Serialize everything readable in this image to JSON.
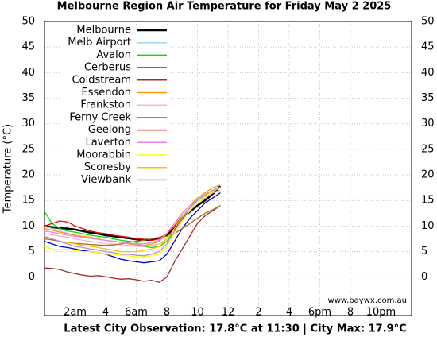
{
  "chart_data": {
    "type": "line",
    "title": "Melbourne Region Air Temperature  for Friday May 2 2025",
    "y_label": "Temperature (°C)",
    "footer": "Latest City Observation: 17.8°C at 11:30 | City Max: 17.9°C",
    "credit": "www.baywx.com.au",
    "x": [
      0,
      0.5,
      1,
      1.5,
      2,
      2.5,
      3,
      3.5,
      4,
      4.5,
      5,
      5.5,
      6,
      6.5,
      7,
      7.5,
      8,
      8.5,
      9,
      9.5,
      10,
      10.5,
      11,
      11.5
    ],
    "xlim": [
      0,
      24
    ],
    "xticks": [
      {
        "value": 2,
        "label": "2am"
      },
      4,
      {
        "value": 6,
        "label": "6am"
      },
      8,
      10,
      12,
      {
        "value": 14,
        "label": "2"
      },
      {
        "value": 16,
        "label": "4"
      },
      {
        "value": 18,
        "label": "6pm"
      },
      {
        "value": 20,
        "label": "8"
      },
      {
        "value": 22,
        "label": "10pm"
      }
    ],
    "ylim": [
      -7.5,
      50
    ],
    "yticks": [
      0,
      5,
      10,
      15,
      20,
      25,
      30,
      35,
      40,
      45,
      50
    ],
    "grid": true,
    "legend": "top-left",
    "series": [
      {
        "name": "Melbourne",
        "color": "#000000",
        "values": [
          10,
          9.8,
          9.6,
          9.5,
          9.3,
          9,
          8.7,
          8.5,
          8.2,
          8,
          7.8,
          7.6,
          7.4,
          7.3,
          7.3,
          7.6,
          8.2,
          9.5,
          11.5,
          12.8,
          14,
          15,
          16.3,
          17.8
        ]
      },
      {
        "name": "Melb Airport",
        "color": "#a0d8e8",
        "values": [
          10,
          9.5,
          9,
          8.6,
          8.2,
          7.8,
          7.6,
          7.4,
          7.2,
          7,
          6.8,
          6.6,
          6.5,
          6.5,
          6.8,
          7.2,
          8.5,
          10.5,
          12.5,
          14,
          15.2,
          16.2,
          17,
          17.5
        ]
      },
      {
        "name": "Avalon",
        "color": "#00e000",
        "values": [
          12.8,
          10.5,
          9.5,
          9,
          8.8,
          8.5,
          8.2,
          8,
          7.8,
          7.5,
          7.2,
          7,
          6.8,
          6,
          5.8,
          6,
          7,
          9,
          11,
          13,
          14.5,
          15.5,
          16.5,
          17
        ]
      },
      {
        "name": "Cerberus",
        "color": "#0000cc",
        "values": [
          7,
          6.5,
          6,
          5.8,
          5.5,
          5.2,
          5,
          4.8,
          4.5,
          4,
          3.5,
          3.2,
          3,
          2.8,
          3,
          3.2,
          4.5,
          7,
          9.5,
          11.5,
          13,
          14.5,
          15.5,
          16.5
        ]
      },
      {
        "name": "Coldstream",
        "color": "#a52a2a",
        "values": [
          1.8,
          1.7,
          1.5,
          1,
          0.7,
          0.4,
          0.2,
          0.3,
          0.1,
          -0.2,
          -0.4,
          -0.3,
          -0.5,
          -0.8,
          -0.6,
          -1,
          0,
          3,
          5.5,
          8,
          10.5,
          12,
          13,
          14
        ]
      },
      {
        "name": "Essendon",
        "color": "#ff9900",
        "values": [
          9.5,
          9.2,
          8.8,
          8.5,
          8.2,
          8,
          7.8,
          7.5,
          7.2,
          7,
          6.8,
          6.5,
          6.3,
          6.2,
          6.5,
          7,
          8.5,
          10.5,
          12.5,
          14,
          15.5,
          16.5,
          17.5,
          18
        ]
      },
      {
        "name": "Frankston",
        "color": "#ffb0c8",
        "values": [
          8.5,
          8.3,
          8,
          7.8,
          7.5,
          7.2,
          7,
          6.8,
          6.5,
          6.5,
          6.3,
          6.2,
          6,
          6,
          6.2,
          6.5,
          7.5,
          9,
          11,
          13,
          14.5,
          15.5,
          16.5,
          17
        ]
      },
      {
        "name": "Ferny Creek",
        "color": "#a07020",
        "values": [
          7.5,
          7.3,
          7,
          6.8,
          6.6,
          6.5,
          6.4,
          6.3,
          6.2,
          6.3,
          6.5,
          6.8,
          7,
          7.2,
          7.5,
          7.8,
          8,
          8.5,
          9.5,
          10.5,
          11.5,
          12.5,
          13.2,
          14
        ]
      },
      {
        "name": "Geelong",
        "color": "#ee0000",
        "values": [
          10,
          10.5,
          11,
          10.8,
          10,
          9.5,
          9,
          8.7,
          8.5,
          8.2,
          8,
          7.8,
          7.5,
          7.4,
          7.2,
          7.5,
          8.5,
          10,
          12,
          13.5,
          15,
          16,
          17,
          17.5
        ]
      },
      {
        "name": "Laverton",
        "color": "#ee82ee",
        "values": [
          9,
          8.8,
          8.5,
          8.2,
          8,
          7.8,
          7.6,
          7.4,
          7.2,
          7,
          6.8,
          6.6,
          6.5,
          6.5,
          6.8,
          7.2,
          8.5,
          10.5,
          12.5,
          14,
          15,
          16,
          16.8,
          17.5
        ]
      },
      {
        "name": "Moorabbin",
        "color": "#ffff00",
        "values": [
          6,
          5.5,
          5.3,
          5.5,
          5.2,
          5,
          5,
          4.8,
          4.5,
          4.5,
          4.3,
          4.2,
          4,
          4,
          4.2,
          4.5,
          6,
          8.5,
          11,
          13,
          14.5,
          15.8,
          16.8,
          17.5
        ]
      },
      {
        "name": "Scoresby",
        "color": "#ffc000",
        "values": [
          8,
          7.5,
          7,
          6.8,
          6.5,
          6.2,
          6,
          5.8,
          5.5,
          5.3,
          5,
          5,
          5,
          5.2,
          5.5,
          6,
          7.5,
          9.5,
          12,
          13.5,
          15,
          16,
          17,
          17.6
        ]
      },
      {
        "name": "Viewbank",
        "color": "#b090e0",
        "values": [
          8,
          7.5,
          7,
          6.5,
          6,
          5.8,
          5.5,
          5.3,
          5,
          4.8,
          4.5,
          4.5,
          4.3,
          4.2,
          4.5,
          5,
          6.5,
          9,
          11.5,
          13.5,
          15,
          16.2,
          17,
          17.5
        ]
      }
    ]
  }
}
